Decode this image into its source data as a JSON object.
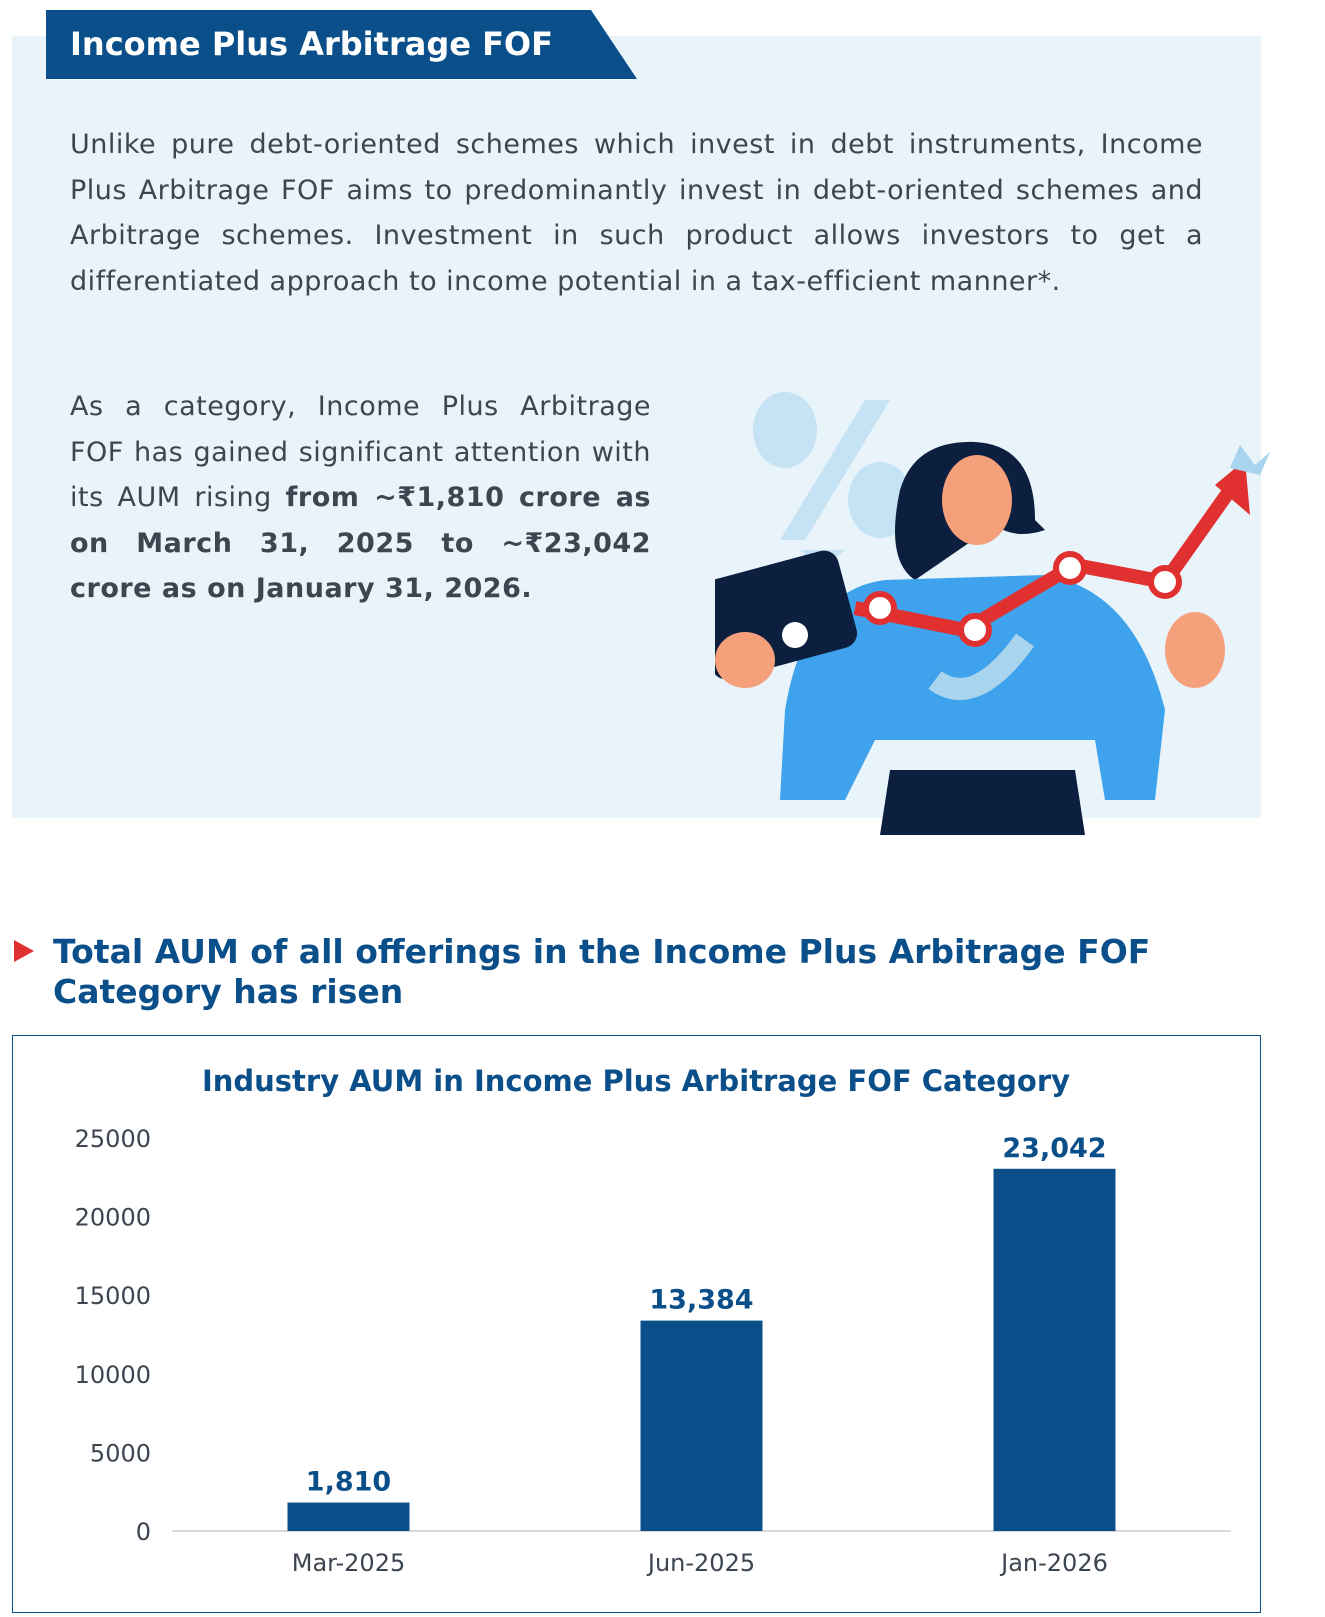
{
  "banner": {
    "title": "Income Plus Arbitrage FOF"
  },
  "intro": {
    "paragraph1": "Unlike pure debt-oriented schemes which invest in debt instruments, Income Plus Arbitrage FOF aims to predominantly invest in debt-oriented schemes and Arbitrage schemes. Investment in such product allows investors to get a differentiated approach to income potential in a tax-efficient manner*.",
    "paragraph2_plain": "As a category, Income Plus Arbitrage FOF has gained significant attention with its AUM rising ",
    "paragraph2_bold": "from ~₹1,810 crore as on March 31, 2025 to ~₹23,042 crore as on January 31, 2026."
  },
  "section": {
    "heading": "Total AUM of all offerings in the Income Plus Arbitrage FOF Category has risen",
    "marker_icon": "red-triangle-bullet-icon"
  },
  "colors": {
    "brand": "#0b4f8a",
    "panel": "#e8f3fa",
    "accent_red": "#e03030"
  },
  "chart_data": {
    "type": "bar",
    "title": "Industry AUM in Income Plus Arbitrage FOF Category",
    "categories": [
      "Mar-2025",
      "Jun-2025",
      "Jan-2026"
    ],
    "values": [
      1810,
      13384,
      23042
    ],
    "data_labels": [
      "1,810",
      "13,384",
      "23,042"
    ],
    "xlabel": "",
    "ylabel": "",
    "ylim": [
      0,
      25000
    ],
    "yticks": [
      "0",
      "5000",
      "10000",
      "15000",
      "20000",
      "25000"
    ],
    "grid": false,
    "legend": "none",
    "bar_color": "#0b4f8a"
  }
}
